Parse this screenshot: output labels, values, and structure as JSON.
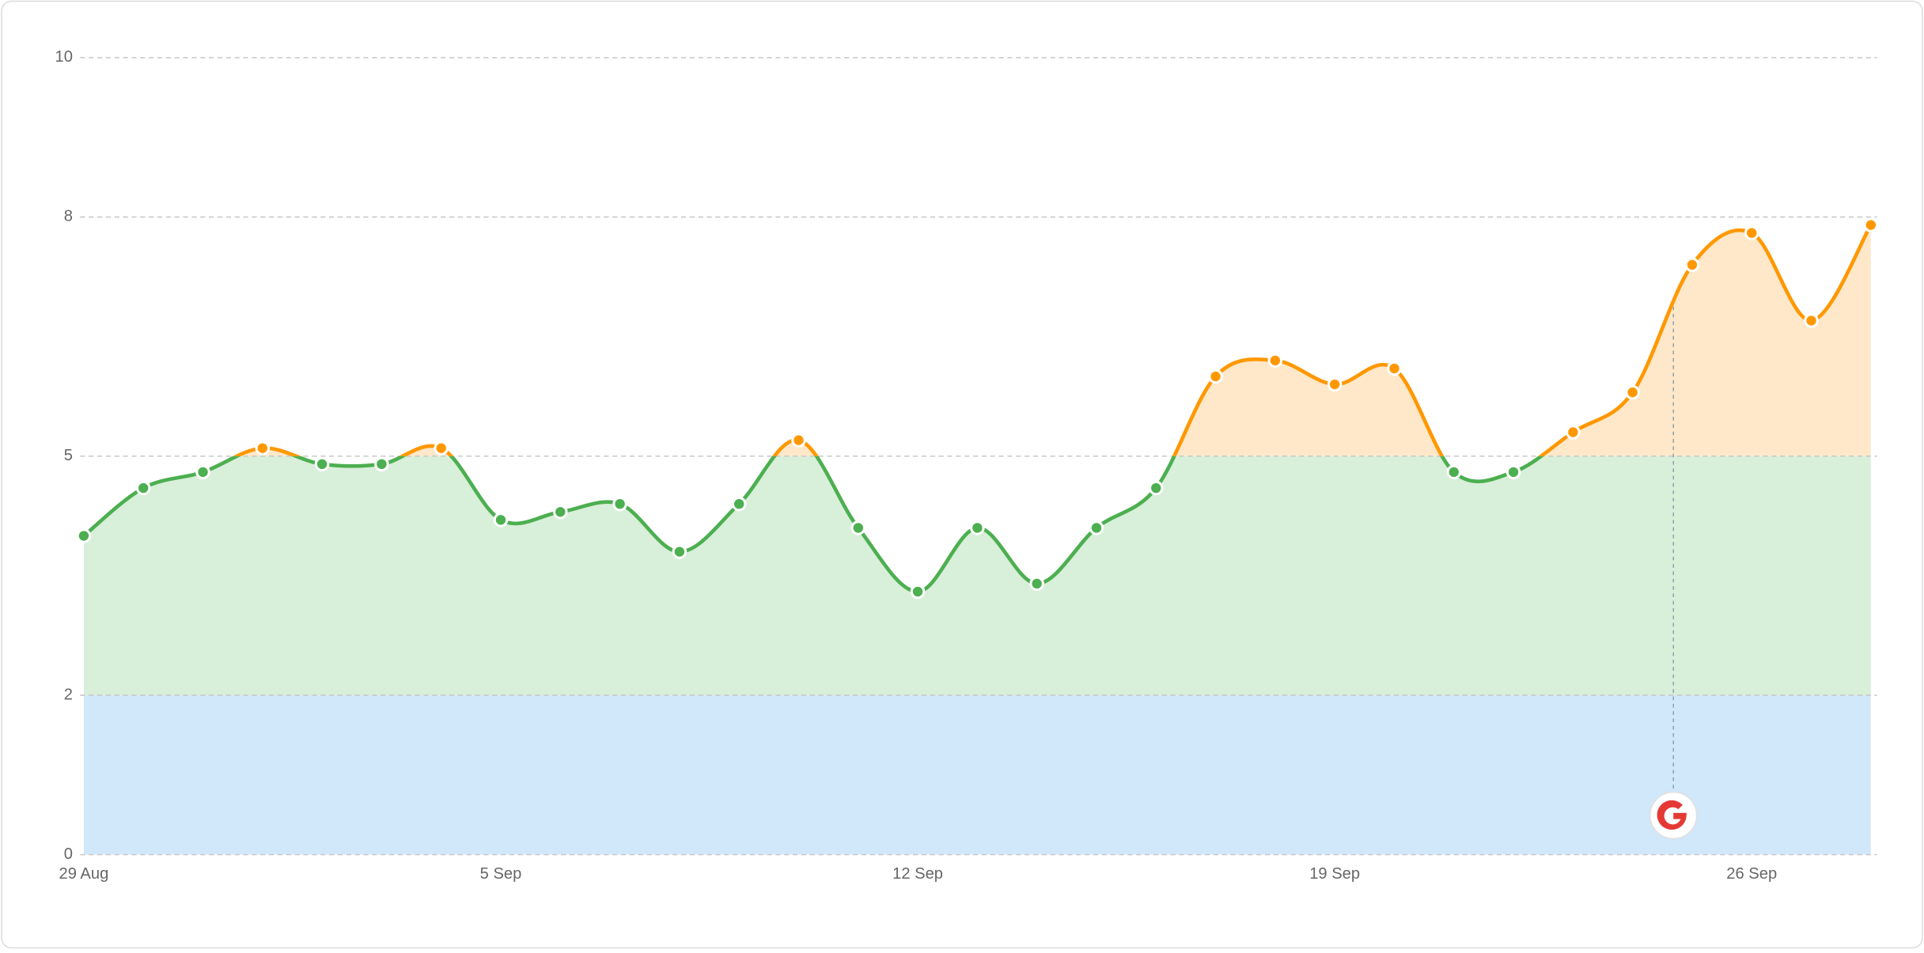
{
  "chart_data": {
    "type": "area",
    "categories": [
      "29 Aug",
      null,
      null,
      null,
      null,
      null,
      null,
      "5 Sep",
      null,
      null,
      null,
      null,
      null,
      null,
      "12 Sep",
      null,
      null,
      null,
      null,
      null,
      null,
      "19 Sep",
      null,
      null,
      null,
      null,
      null,
      null,
      "26 Sep",
      null,
      null
    ],
    "series": [
      {
        "values": [
          4.0,
          4.6,
          4.8,
          5.1,
          4.9,
          4.9,
          5.1,
          4.2,
          4.3,
          4.4,
          3.8,
          4.4,
          5.2,
          4.1,
          3.3,
          4.1,
          3.4,
          4.1,
          4.6,
          6.0,
          6.2,
          5.9,
          6.1,
          4.8,
          4.8,
          5.3,
          5.8,
          7.4,
          7.8,
          6.7,
          7.9
        ]
      }
    ],
    "ylim": [
      0,
      10
    ],
    "yticks": [
      0,
      2,
      5,
      8,
      10
    ],
    "grid": true,
    "thresholds": [
      2,
      5
    ],
    "band_colors": [
      "#d1e7fa",
      "#d8efd9",
      "#fee8c9"
    ],
    "line_colors": [
      "#4caf50",
      "#4caf50",
      "#ff9800"
    ]
  }
}
